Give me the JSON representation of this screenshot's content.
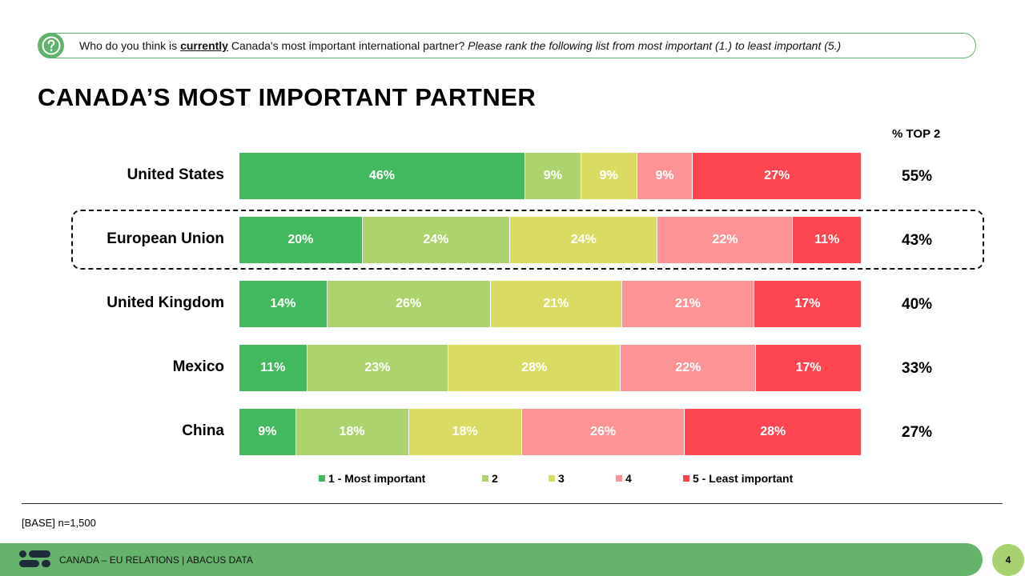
{
  "question": {
    "prefix": "Who do you think is ",
    "emphasis": "currently",
    "middle": " Canada's most important international partner? ",
    "instruction": "Please rank the following list from most important (1.) to least important (5.)"
  },
  "title": "CANADA’S MOST IMPORTANT PARTNER",
  "top2_header": "% TOP 2",
  "chart_data": {
    "type": "bar",
    "orientation": "horizontal-stacked-100",
    "title": "CANADA’S MOST IMPORTANT PARTNER",
    "categories": [
      "United States",
      "European Union",
      "United Kingdom",
      "Mexico",
      "China"
    ],
    "series": [
      {
        "name": "1 - Most important",
        "color": "#42b95e",
        "values": [
          46,
          20,
          14,
          11,
          9
        ]
      },
      {
        "name": "2",
        "color": "#add36e",
        "values": [
          9,
          24,
          26,
          23,
          18
        ]
      },
      {
        "name": "3",
        "color": "#d9db62",
        "values": [
          9,
          24,
          21,
          28,
          18
        ]
      },
      {
        "name": "4",
        "color": "#fd9394",
        "values": [
          9,
          22,
          21,
          22,
          26
        ]
      },
      {
        "name": "5 - Least important",
        "color": "#fe4650",
        "values": [
          27,
          11,
          17,
          17,
          28
        ]
      }
    ],
    "top2": [
      "55%",
      "43%",
      "40%",
      "33%",
      "27%"
    ],
    "highlighted_category": "European Union",
    "legend_position": "bottom"
  },
  "base_note": "[BASE] n=1,500",
  "footer": {
    "text": "CANADA – EU RELATIONS  |  ABACUS DATA",
    "page_number": "4"
  },
  "colors": {
    "accent_green": "#5fb26b",
    "footer_green": "#66b46c",
    "page_circle": "#a8d170"
  }
}
